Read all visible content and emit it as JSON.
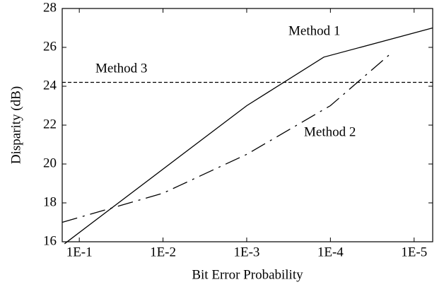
{
  "chart_data": {
    "type": "line",
    "xlabel": "Bit Error Probability",
    "ylabel": "Disparity (dB)",
    "xscale": "log",
    "xlim": [
      0.16,
      6e-06
    ],
    "ylim": [
      16,
      28
    ],
    "xticks": [
      {
        "value": 0.1,
        "label": "1E-1"
      },
      {
        "value": 0.01,
        "label": "1E-2"
      },
      {
        "value": 0.001,
        "label": "1E-3"
      },
      {
        "value": 0.0001,
        "label": "1E-4"
      },
      {
        "value": 1e-05,
        "label": "1E-5"
      }
    ],
    "yticks": [
      16,
      18,
      20,
      22,
      24,
      26,
      28
    ],
    "grid": false,
    "series": [
      {
        "name": "Method 1",
        "color": "#000000",
        "style": "solid",
        "x": [
          0.15,
          0.001,
          0.00012,
          6e-06
        ],
        "values": [
          15.9,
          23,
          25.5,
          27
        ]
      },
      {
        "name": "Method 2",
        "color": "#000000",
        "style": "dashdot",
        "x": [
          0.16,
          0.01,
          0.001,
          0.0001,
          2e-05
        ],
        "values": [
          17,
          18.5,
          20.5,
          23,
          25.6
        ]
      },
      {
        "name": "Method 3",
        "color": "#000000",
        "style": "dashed",
        "x": [
          0.16,
          6e-06
        ],
        "values": [
          24.2,
          24.2
        ]
      }
    ]
  }
}
